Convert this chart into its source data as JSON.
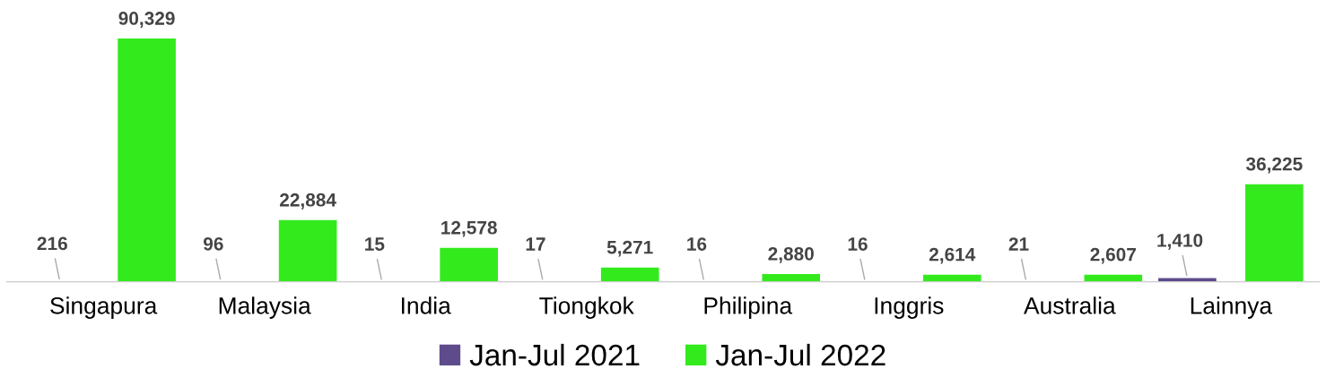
{
  "chart_data": {
    "type": "bar",
    "categories": [
      "Singapura",
      "Malaysia",
      "India",
      "Tiongkok",
      "Philipina",
      "Inggris",
      "Australia",
      "Lainnya"
    ],
    "series": [
      {
        "name": "Jan-Jul 2021",
        "color": "#5e4b8b",
        "values": [
          216,
          96,
          15,
          17,
          16,
          16,
          21,
          1410
        ],
        "value_labels": [
          "216",
          "96",
          "15",
          "17",
          "16",
          "16",
          "21",
          "1,410"
        ]
      },
      {
        "name": "Jan-Jul 2022",
        "color": "#33ea1d",
        "values": [
          90329,
          22884,
          12578,
          5271,
          2880,
          2614,
          2607,
          36225
        ],
        "value_labels": [
          "90,329",
          "22,884",
          "12,578",
          "5,271",
          "2,880",
          "2,614",
          "2,607",
          "36,225"
        ]
      }
    ],
    "legend": "bottom",
    "grid": false
  }
}
